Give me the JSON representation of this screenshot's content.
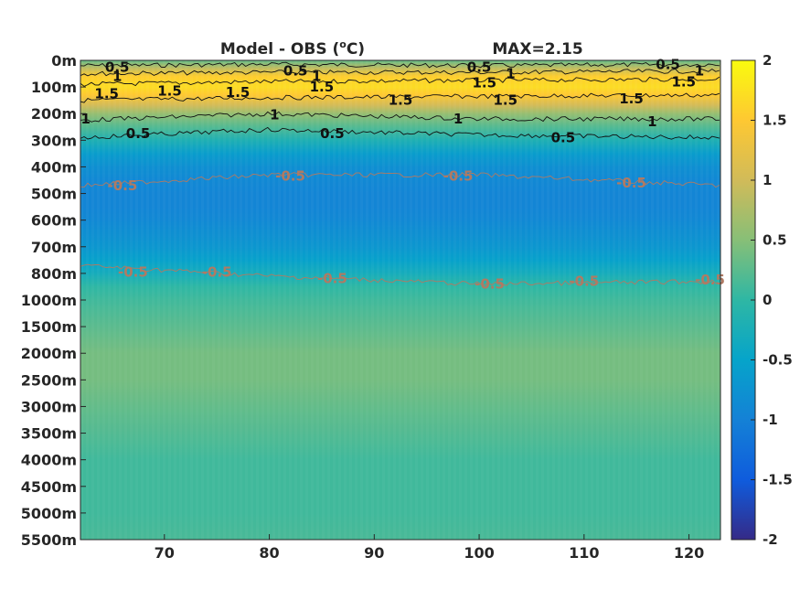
{
  "chart_data": {
    "type": "heatmap",
    "title": "Model - OBS (°C)",
    "title_parts": {
      "pre": "Model - OBS (",
      "sup": "o",
      "post": "C)"
    },
    "annotation": "MAX=2.15",
    "xlabel": "",
    "ylabel": "",
    "xlim": [
      62,
      123
    ],
    "x_ticks": [
      70,
      80,
      90,
      100,
      110,
      120
    ],
    "y_ticks": [
      "0m",
      "100m",
      "200m",
      "300m",
      "400m",
      "500m",
      "600m",
      "700m",
      "800m",
      "1000m",
      "1500m",
      "2000m",
      "2500m",
      "3000m",
      "3500m",
      "4000m",
      "4500m",
      "5000m",
      "5500m"
    ],
    "colorbar": {
      "range": [
        -2,
        2
      ],
      "ticks": [
        "2",
        "1.5",
        "1",
        "0.5",
        "0",
        "-0.5",
        "-1",
        "-1.5",
        "-2"
      ],
      "colormap": "parula"
    },
    "colormap_stops": [
      "#352a87",
      "#0f5cdd",
      "#1481d6",
      "#06a4ca",
      "#2eb7a4",
      "#87bf77",
      "#d1bb59",
      "#fec832",
      "#f9fb0e"
    ],
    "profile_depth_index": [
      0,
      0.3,
      0.6,
      1,
      1.3,
      1.7,
      2,
      2.5,
      3,
      3.5,
      4,
      4.5,
      5,
      5.5,
      6,
      6.5,
      7,
      7.5,
      8,
      8.5,
      9,
      10,
      11,
      12,
      13,
      14,
      15,
      16,
      17,
      18
    ],
    "profile_values": [
      0.3,
      0.9,
      1.55,
      1.7,
      1.5,
      1.0,
      0.6,
      0.2,
      -0.2,
      -0.6,
      -0.8,
      -0.9,
      -0.95,
      -0.95,
      -0.9,
      -0.8,
      -0.7,
      -0.55,
      -0.3,
      0.0,
      0.1,
      0.25,
      0.4,
      0.4,
      0.3,
      0.2,
      0.1,
      0.1,
      0.1,
      0.15
    ],
    "contour_labels": [
      {
        "text": "0.5",
        "x": 65.5,
        "y": 0.25,
        "color": "black"
      },
      {
        "text": "1",
        "x": 65.5,
        "y": 0.6,
        "color": "black"
      },
      {
        "text": "1.5",
        "x": 64.5,
        "y": 1.25,
        "color": "black"
      },
      {
        "text": "1.5",
        "x": 70.5,
        "y": 1.15,
        "color": "black"
      },
      {
        "text": "1.5",
        "x": 77,
        "y": 1.2,
        "color": "black"
      },
      {
        "text": "0.5",
        "x": 82.5,
        "y": 0.4,
        "color": "black"
      },
      {
        "text": "1",
        "x": 84.5,
        "y": 0.6,
        "color": "black"
      },
      {
        "text": "1.5",
        "x": 85,
        "y": 1.0,
        "color": "black"
      },
      {
        "text": "1",
        "x": 62.5,
        "y": 2.2,
        "color": "black"
      },
      {
        "text": "0.5",
        "x": 67.5,
        "y": 2.75,
        "color": "black"
      },
      {
        "text": "1",
        "x": 80.5,
        "y": 2.05,
        "color": "black"
      },
      {
        "text": "0.5",
        "x": 86,
        "y": 2.75,
        "color": "black"
      },
      {
        "text": "1.5",
        "x": 92.5,
        "y": 1.5,
        "color": "black"
      },
      {
        "text": "0.5",
        "x": 100,
        "y": 0.25,
        "color": "black"
      },
      {
        "text": "1",
        "x": 103,
        "y": 0.5,
        "color": "black"
      },
      {
        "text": "1.5",
        "x": 100.5,
        "y": 0.85,
        "color": "black"
      },
      {
        "text": "1.5",
        "x": 102.5,
        "y": 1.5,
        "color": "black"
      },
      {
        "text": "1",
        "x": 98,
        "y": 2.2,
        "color": "black"
      },
      {
        "text": "0.5",
        "x": 108,
        "y": 2.9,
        "color": "black"
      },
      {
        "text": "1.5",
        "x": 114.5,
        "y": 1.45,
        "color": "black"
      },
      {
        "text": "1",
        "x": 116.5,
        "y": 2.3,
        "color": "black"
      },
      {
        "text": "0.5",
        "x": 118,
        "y": 0.15,
        "color": "black"
      },
      {
        "text": "1",
        "x": 121,
        "y": 0.4,
        "color": "black"
      },
      {
        "text": "1.5",
        "x": 119.5,
        "y": 0.8,
        "color": "black"
      },
      {
        "text": "-0.5",
        "x": 66,
        "y": 4.7,
        "color": "gray"
      },
      {
        "text": "-0.5",
        "x": 82,
        "y": 4.35,
        "color": "gray"
      },
      {
        "text": "-0.5",
        "x": 98,
        "y": 4.35,
        "color": "gray"
      },
      {
        "text": "-0.5",
        "x": 114.5,
        "y": 4.6,
        "color": "gray"
      },
      {
        "text": "-0.5",
        "x": 67,
        "y": 7.95,
        "color": "gray"
      },
      {
        "text": "-0.5",
        "x": 75,
        "y": 7.95,
        "color": "gray"
      },
      {
        "text": "-0.5",
        "x": 86,
        "y": 8.2,
        "color": "gray"
      },
      {
        "text": "-0.5",
        "x": 101,
        "y": 8.4,
        "color": "gray"
      },
      {
        "text": "-0.5",
        "x": 110,
        "y": 8.3,
        "color": "gray"
      },
      {
        "text": "-0.5",
        "x": 122,
        "y": 8.25,
        "color": "gray"
      }
    ],
    "contour_lines": [
      {
        "color": "black",
        "depth": [
          [
            62,
            0.2
          ],
          [
            80,
            0.15
          ],
          [
            100,
            0.2
          ],
          [
            123,
            0.15
          ]
        ]
      },
      {
        "color": "black",
        "depth": [
          [
            62,
            0.5
          ],
          [
            80,
            0.45
          ],
          [
            100,
            0.45
          ],
          [
            123,
            0.4
          ]
        ]
      },
      {
        "color": "black",
        "depth": [
          [
            62,
            0.9
          ],
          [
            80,
            0.8
          ],
          [
            100,
            0.75
          ],
          [
            123,
            0.7
          ]
        ]
      },
      {
        "color": "black",
        "depth": [
          [
            62,
            1.5
          ],
          [
            80,
            1.4
          ],
          [
            100,
            1.35
          ],
          [
            123,
            1.3
          ]
        ]
      },
      {
        "color": "black",
        "depth": [
          [
            62,
            2.25
          ],
          [
            80,
            2.0
          ],
          [
            100,
            2.2
          ],
          [
            123,
            2.2
          ]
        ]
      },
      {
        "color": "black",
        "depth": [
          [
            62,
            2.9
          ],
          [
            80,
            2.6
          ],
          [
            100,
            2.8
          ],
          [
            123,
            2.9
          ]
        ]
      },
      {
        "color": "gray",
        "depth": [
          [
            62,
            4.7
          ],
          [
            80,
            4.3
          ],
          [
            100,
            4.3
          ],
          [
            123,
            4.7
          ]
        ]
      },
      {
        "color": "gray",
        "depth": [
          [
            62,
            7.7
          ],
          [
            80,
            8.1
          ],
          [
            100,
            8.4
          ],
          [
            123,
            8.3
          ]
        ]
      }
    ]
  }
}
